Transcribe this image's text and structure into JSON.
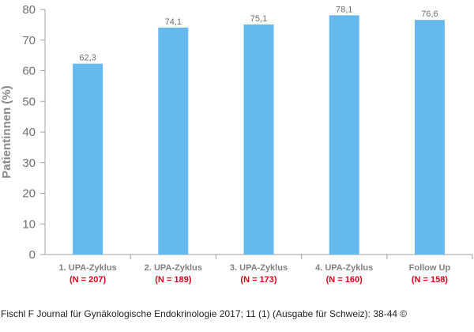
{
  "chart_data": {
    "type": "bar",
    "ylabel": "Patientinnen (%)",
    "ylim": [
      0,
      80
    ],
    "yticks": [
      0,
      10,
      20,
      30,
      40,
      50,
      60,
      70,
      80
    ],
    "categories": [
      "1. UPA-Zyklus",
      "2. UPA-Zyklus",
      "3. UPA-Zyklus",
      "4. UPA-Zyklus",
      "Follow Up"
    ],
    "sample_sizes": [
      "(N = 207)",
      "(N = 189)",
      "(N = 173)",
      "(N = 160)",
      "(N = 158)"
    ],
    "values": [
      62.3,
      74.1,
      75.1,
      78.1,
      76.6
    ],
    "value_labels": [
      "62,3",
      "74,1",
      "75,1",
      "78,1",
      "76,6"
    ],
    "grid": false,
    "colors": {
      "bar": "#66b9ec",
      "axis": "#a0a0a0",
      "sample_size": "#e0001b",
      "text": "#6e6e6e"
    }
  },
  "caption": "Fischl F Journal für Gynäkologische Endokrinologie 2017; 11 (1) (Ausgabe für Schweiz): 38-44 ©"
}
